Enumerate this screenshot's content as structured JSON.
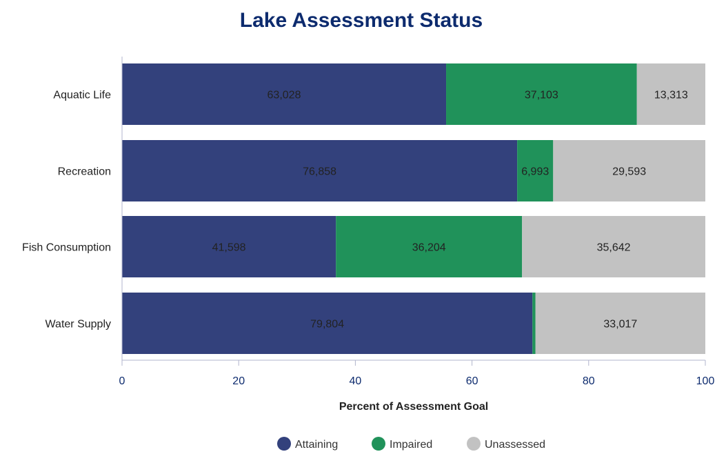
{
  "chart_data": {
    "type": "bar",
    "orientation": "horizontal",
    "stacked": "percent",
    "title": "Lake Assessment Status",
    "xlabel": "Percent of Assessment Goal",
    "ylabel": "",
    "xlim": [
      0,
      100
    ],
    "xticks": [
      "0",
      "20",
      "40",
      "60",
      "80",
      "100"
    ],
    "categories": [
      "Aquatic Life",
      "Recreation",
      "Fish Consumption",
      "Water Supply"
    ],
    "series": [
      {
        "name": "Attaining",
        "color": "#33417c",
        "values": [
          63028,
          76858,
          41598,
          79804
        ],
        "labels": [
          "63,028",
          "76,858",
          "41,598",
          "79,804"
        ]
      },
      {
        "name": "Impaired",
        "color": "#20925a",
        "values": [
          37103,
          6993,
          36204,
          600
        ],
        "labels": [
          "37,103",
          "6,993",
          "36,204",
          ""
        ]
      },
      {
        "name": "Unassessed",
        "color": "#c2c2c2",
        "values": [
          13313,
          29593,
          35642,
          33017
        ],
        "labels": [
          "13,313",
          "29,593",
          "35,642",
          "33,017"
        ]
      }
    ],
    "grid": false,
    "legend": "bottom"
  }
}
